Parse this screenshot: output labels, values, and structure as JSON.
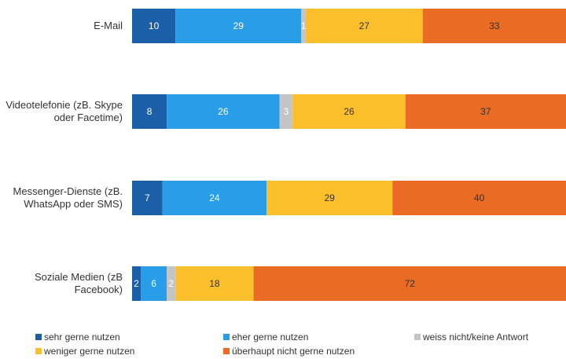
{
  "chart_data": {
    "type": "bar",
    "orientation": "horizontal",
    "stacked": true,
    "percent_stacked": true,
    "categories": [
      [
        "E-Mail"
      ],
      [
        "Videotelefonie (zB. Skype",
        "oder Facetime)"
      ],
      [
        "Messenger-Dienste (zB.",
        "WhatsApp oder SMS)"
      ],
      [
        "Soziale Medien (zB",
        "Facebook)"
      ]
    ],
    "series": [
      {
        "name": "sehr gerne nutzen",
        "color": "#1a5fa8",
        "label_color": "#ffffff",
        "values": [
          10,
          8,
          7,
          2
        ]
      },
      {
        "name": "eher gerne nutzen",
        "color": "#2a9de8",
        "label_color": "#ffffff",
        "values": [
          29,
          26,
          24,
          6
        ]
      },
      {
        "name": "weiss nicht/keine Antwort",
        "color": "#c4c4c4",
        "label_color": "#ffffff",
        "values": [
          1,
          3,
          0,
          2
        ]
      },
      {
        "name": "weniger gerne nutzen",
        "color": "#fbbf2b",
        "label_color": "#333333",
        "values": [
          27,
          26,
          29,
          18
        ]
      },
      {
        "name": "überhaupt nicht gerne nutzen",
        "color": "#e96b24",
        "label_color": "#333333",
        "values": [
          33,
          37,
          40,
          72
        ]
      }
    ],
    "xlim": [
      0,
      100
    ],
    "grid": false,
    "legend_position": "bottom"
  }
}
